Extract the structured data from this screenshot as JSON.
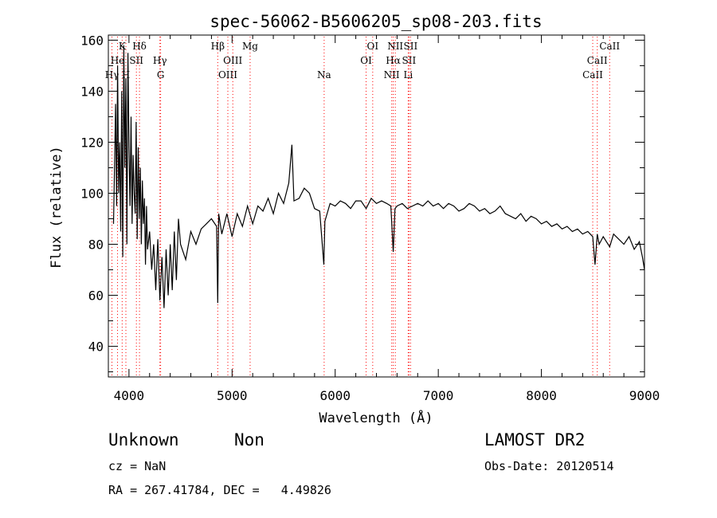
{
  "chart_data": {
    "type": "line",
    "title": "spec-56062-B5606205_sp08-203.fits",
    "xlabel": "Wavelength (Å)",
    "ylabel": "Flux (relative)",
    "xlim": [
      3800,
      9000
    ],
    "ylim": [
      28,
      162
    ],
    "x_ticks": [
      4000,
      5000,
      6000,
      7000,
      8000,
      9000
    ],
    "y_ticks": [
      40,
      60,
      80,
      100,
      120,
      140,
      160
    ],
    "grid": false,
    "line_color": "#000000",
    "marker_color": "#ff0000",
    "spectrum": {
      "x": [
        3850,
        3870,
        3880,
        3890,
        3900,
        3910,
        3920,
        3930,
        3940,
        3950,
        3960,
        3970,
        3980,
        3990,
        4000,
        4010,
        4020,
        4030,
        4040,
        4050,
        4060,
        4070,
        4080,
        4090,
        4100,
        4110,
        4120,
        4130,
        4140,
        4150,
        4160,
        4170,
        4180,
        4200,
        4220,
        4240,
        4260,
        4280,
        4300,
        4320,
        4340,
        4360,
        4380,
        4400,
        4420,
        4440,
        4460,
        4480,
        4500,
        4550,
        4600,
        4650,
        4700,
        4750,
        4800,
        4850,
        4861,
        4870,
        4900,
        4950,
        5000,
        5050,
        5100,
        5150,
        5200,
        5250,
        5300,
        5350,
        5400,
        5450,
        5500,
        5550,
        5580,
        5600,
        5650,
        5700,
        5750,
        5800,
        5850,
        5890,
        5900,
        5950,
        6000,
        6050,
        6100,
        6150,
        6200,
        6250,
        6300,
        6350,
        6400,
        6450,
        6500,
        6540,
        6563,
        6580,
        6600,
        6650,
        6700,
        6750,
        6800,
        6850,
        6900,
        6950,
        7000,
        7050,
        7100,
        7150,
        7200,
        7250,
        7300,
        7350,
        7400,
        7450,
        7500,
        7550,
        7600,
        7650,
        7700,
        7750,
        7800,
        7850,
        7900,
        7950,
        8000,
        8050,
        8100,
        8150,
        8200,
        8250,
        8300,
        8350,
        8400,
        8450,
        8498,
        8520,
        8542,
        8560,
        8600,
        8662,
        8700,
        8750,
        8800,
        8850,
        8900,
        8950,
        8980,
        9000
      ],
      "y": [
        88,
        135,
        95,
        150,
        100,
        120,
        85,
        140,
        75,
        158,
        110,
        145,
        80,
        155,
        118,
        95,
        130,
        88,
        115,
        100,
        92,
        128,
        82,
        118,
        90,
        110,
        80,
        105,
        88,
        98,
        72,
        95,
        78,
        85,
        70,
        80,
        62,
        82,
        58,
        75,
        55,
        78,
        60,
        80,
        62,
        85,
        66,
        90,
        80,
        74,
        85,
        80,
        86,
        88,
        90,
        87,
        57,
        92,
        84,
        92,
        83,
        92,
        87,
        95,
        88,
        95,
        93,
        98,
        92,
        100,
        96,
        104,
        119,
        97,
        98,
        102,
        100,
        94,
        93,
        72,
        89,
        96,
        95,
        97,
        96,
        94,
        97,
        97,
        94,
        98,
        96,
        97,
        96,
        95,
        77,
        94,
        95,
        96,
        94,
        95,
        96,
        95,
        97,
        95,
        96,
        94,
        96,
        95,
        93,
        94,
        96,
        95,
        93,
        94,
        92,
        93,
        95,
        92,
        91,
        90,
        92,
        89,
        91,
        90,
        88,
        89,
        87,
        88,
        86,
        87,
        85,
        86,
        84,
        85,
        83,
        72,
        84,
        80,
        83,
        79,
        84,
        82,
        80,
        83,
        78,
        81,
        75,
        70
      ]
    },
    "lines": [
      {
        "label": "Hγ",
        "x": 3835,
        "row": 3
      },
      {
        "label": "He",
        "x": 3889,
        "row": 2
      },
      {
        "label": "K",
        "x": 3934,
        "row": 1
      },
      {
        "label": "H",
        "x": 3970,
        "row": 3
      },
      {
        "label": "SII",
        "x": 4072,
        "row": 2
      },
      {
        "label": "Hδ",
        "x": 4102,
        "row": 1
      },
      {
        "label": "Hγ",
        "x": 4300,
        "row": 2
      },
      {
        "label": "G",
        "x": 4307,
        "row": 3
      },
      {
        "label": "Hβ",
        "x": 4861,
        "row": 1
      },
      {
        "label": "OIII",
        "x": 4959,
        "row": 3
      },
      {
        "label": "OIII",
        "x": 5007,
        "row": 2
      },
      {
        "label": "Mg",
        "x": 5175,
        "row": 1
      },
      {
        "label": "Na",
        "x": 5893,
        "row": 3
      },
      {
        "label": "OI",
        "x": 6300,
        "row": 2
      },
      {
        "label": "OI",
        "x": 6364,
        "row": 1
      },
      {
        "label": "NII",
        "x": 6548,
        "row": 3
      },
      {
        "label": "Hα",
        "x": 6563,
        "row": 2
      },
      {
        "label": "NII",
        "x": 6583,
        "row": 1
      },
      {
        "label": "SII",
        "x": 6716,
        "row": 2
      },
      {
        "label": "Li",
        "x": 6708,
        "row": 3
      },
      {
        "label": "SII",
        "x": 6731,
        "row": 1
      },
      {
        "label": "CaII",
        "x": 8498,
        "row": 3
      },
      {
        "label": "CaII",
        "x": 8542,
        "row": 2
      },
      {
        "label": "CaII",
        "x": 8662,
        "row": 1
      }
    ]
  },
  "info": {
    "class": "Unknown",
    "subclass": "Non",
    "survey": "LAMOST DR2",
    "cz": "cz = NaN",
    "obs_date": "Obs-Date: 20120514",
    "coords": "RA = 267.41784, DEC =   4.49826"
  }
}
